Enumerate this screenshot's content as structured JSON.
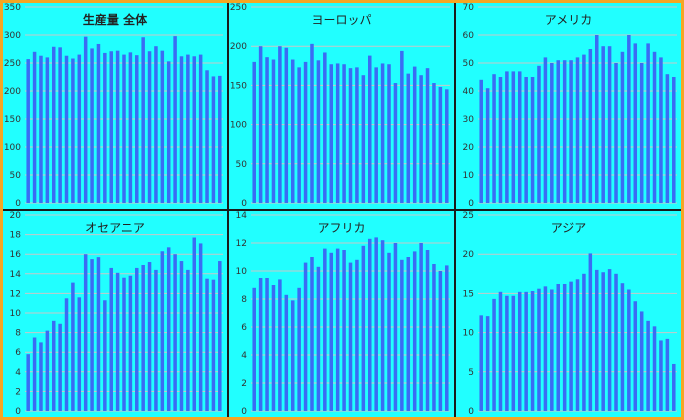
{
  "colors": {
    "frame": "#f5a623",
    "plot_background": "#21ffff",
    "bar": "#3a6cf4",
    "gridline": "#c8c8c8",
    "divider": "#1a1a1a"
  },
  "chart_data": [
    {
      "type": "bar",
      "title": "生産量 全体",
      "title_bold": true,
      "ylim": [
        0,
        350
      ],
      "yticks": [
        0,
        50,
        100,
        150,
        200,
        250,
        300,
        350
      ],
      "grid": true,
      "values": [
        257,
        270,
        263,
        260,
        279,
        278,
        263,
        258,
        265,
        297,
        276,
        284,
        268,
        271,
        272,
        265,
        269,
        264,
        296,
        271,
        280,
        272,
        253,
        298,
        262,
        265,
        262,
        265,
        237,
        226,
        227
      ]
    },
    {
      "type": "bar",
      "title": "ヨーロッパ",
      "title_bold": false,
      "ylim": [
        0,
        250
      ],
      "yticks": [
        0,
        50,
        100,
        150,
        200,
        250
      ],
      "grid": true,
      "values": [
        180,
        200,
        186,
        183,
        200,
        198,
        183,
        173,
        180,
        203,
        182,
        192,
        177,
        178,
        177,
        172,
        173,
        163,
        188,
        173,
        178,
        177,
        153,
        194,
        165,
        174,
        163,
        172,
        153,
        148,
        145
      ]
    },
    {
      "type": "bar",
      "title": "アメリカ",
      "title_bold": false,
      "ylim": [
        0,
        70
      ],
      "yticks": [
        0,
        10,
        20,
        30,
        40,
        50,
        60,
        70
      ],
      "grid": true,
      "values": [
        44,
        41,
        46,
        45,
        47,
        47,
        47,
        45,
        45,
        49,
        52,
        50,
        51,
        51,
        51,
        52,
        53,
        55,
        60,
        56,
        56,
        50,
        54,
        60,
        57,
        50,
        57,
        54,
        52,
        46,
        45
      ]
    },
    {
      "type": "bar",
      "title": "オセアニア",
      "title_bold": false,
      "ylim": [
        0,
        20
      ],
      "yticks": [
        0,
        2,
        4,
        6,
        8,
        10,
        12,
        14,
        16,
        18,
        20
      ],
      "grid": true,
      "values": [
        5.8,
        7.5,
        7,
        8.2,
        9.2,
        8.9,
        11.5,
        13.1,
        11.6,
        16,
        15.5,
        15.7,
        11.3,
        14.6,
        14.1,
        13.6,
        13.8,
        14.6,
        14.9,
        15.2,
        14.4,
        16.3,
        16.7,
        16,
        15.3,
        14.4,
        17.7,
        17.1,
        13.5,
        13.4,
        15.3
      ]
    },
    {
      "type": "bar",
      "title": "アフリカ",
      "title_bold": false,
      "ylim": [
        0,
        14
      ],
      "yticks": [
        0,
        2,
        4,
        6,
        8,
        10,
        12,
        14
      ],
      "grid": true,
      "values": [
        8.8,
        9.5,
        9.5,
        9,
        9.4,
        8.3,
        7.9,
        8.8,
        10.6,
        11,
        10.3,
        11.6,
        11.3,
        11.6,
        11.5,
        10.6,
        10.8,
        11.8,
        12.3,
        12.4,
        12.2,
        11.3,
        12,
        10.8,
        11,
        11.4,
        12,
        11.5,
        10.5,
        10,
        10.4
      ]
    },
    {
      "type": "bar",
      "title": "アジア",
      "title_bold": false,
      "ylim": [
        0,
        25
      ],
      "yticks": [
        0,
        5,
        10,
        15,
        20,
        25
      ],
      "grid": true,
      "values": [
        12.2,
        12.1,
        14.3,
        15.2,
        14.7,
        14.7,
        15.2,
        15.2,
        15.3,
        15.6,
        15.9,
        15.5,
        16.2,
        16.2,
        16.5,
        16.8,
        17.5,
        20.1,
        18,
        17.7,
        18.1,
        17.5,
        16.3,
        15.5,
        14,
        12.7,
        11.5,
        10.8,
        9,
        9.2,
        6
      ]
    }
  ]
}
